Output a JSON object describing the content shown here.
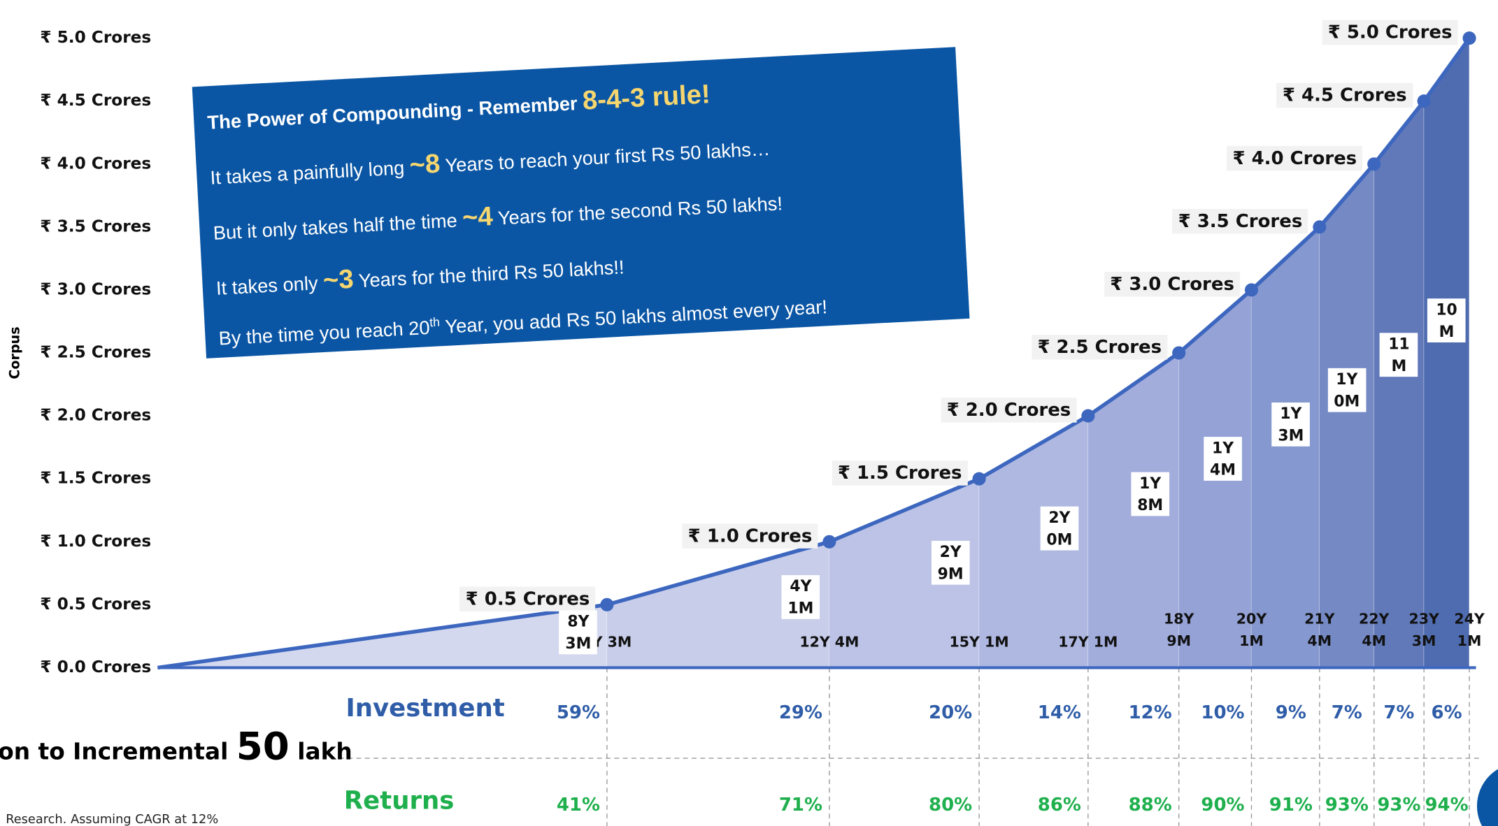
{
  "chart_data": {
    "type": "area",
    "y_label": "Corpus",
    "x": [
      0,
      8.25,
      12.333,
      15.083,
      17.083,
      18.75,
      20.083,
      21.333,
      22.333,
      23.25,
      24.083
    ],
    "values": [
      0,
      0.5,
      1.0,
      1.5,
      2.0,
      2.5,
      3.0,
      3.5,
      4.0,
      4.5,
      5.0
    ],
    "value_labels": [
      null,
      "₹ 0.5 Crores",
      "₹ 1.0 Crores",
      "₹ 1.5 Crores",
      "₹ 2.0 Crores",
      "₹ 2.5 Crores",
      "₹ 3.0 Crores",
      "₹ 3.5 Crores",
      "₹ 4.0 Crores",
      "₹ 4.5 Crores",
      "₹ 5.0 Crores"
    ],
    "xlim": [
      0,
      24.083
    ],
    "xticks": [
      {
        "value": 8.25,
        "label": "8Y 3M"
      },
      {
        "value": 12.333,
        "label": "12Y 4M"
      },
      {
        "value": 15.083,
        "label": "15Y 1M"
      },
      {
        "value": 17.083,
        "label": "17Y 1M"
      },
      {
        "value": 18.75,
        "label": "18Y 9M"
      },
      {
        "value": 20.083,
        "label": "20Y 1M"
      },
      {
        "value": 21.333,
        "label": "21Y 4M"
      },
      {
        "value": 22.333,
        "label": "22Y 4M"
      },
      {
        "value": 23.25,
        "label": "23Y 3M"
      },
      {
        "value": 24.083,
        "label": "24Y 1M"
      }
    ],
    "ylim": [
      0,
      5
    ],
    "yticks": [
      {
        "value": 0,
        "label": "₹ 0.0 Crores"
      },
      {
        "value": 0.5,
        "label": "₹ 0.5 Crores"
      },
      {
        "value": 1,
        "label": "₹ 1.0 Crores"
      },
      {
        "value": 1.5,
        "label": "₹ 1.5 Crores"
      },
      {
        "value": 2,
        "label": "₹ 2.0 Crores"
      },
      {
        "value": 2.5,
        "label": "₹ 2.5 Crores"
      },
      {
        "value": 3,
        "label": "₹ 3.0 Crores"
      },
      {
        "value": 3.5,
        "label": "₹ 3.5 Crores"
      },
      {
        "value": 4,
        "label": "₹ 4.0 Crores"
      },
      {
        "value": 4.5,
        "label": "₹ 4.5 Crores"
      },
      {
        "value": 5,
        "label": "₹ 5.0 Crores"
      }
    ],
    "durations": [
      "8Y 3M",
      "4Y 1M",
      "2Y 9M",
      "2Y 0M",
      "1Y 8M",
      "1Y 4M",
      "1Y 3M",
      "1Y 0M",
      "11 M",
      "10 M"
    ],
    "line_color": "#3d67bf",
    "band_colors": [
      "#d4d8ee",
      "#c8cdea",
      "#bcc3e6",
      "#afb8e1",
      "#a2addc",
      "#95a2d6",
      "#8598cf",
      "#7589c4",
      "#6179b9",
      "#4f6cb0"
    ],
    "investment": {
      "label": "Investment",
      "color": "#2f5da8",
      "values": [
        59,
        29,
        20,
        14,
        12,
        10,
        9,
        7,
        7,
        6
      ],
      "value_labels": [
        "59%",
        "29%",
        "20%",
        "14%",
        "12%",
        "10%",
        "9%",
        "7%",
        "7%",
        "6%"
      ]
    },
    "returns": {
      "label": "Returns",
      "color": "#1fb04d",
      "values": [
        41,
        71,
        80,
        86,
        88,
        90,
        91,
        93,
        93,
        94
      ],
      "value_labels": [
        "41%",
        "71%",
        "80%",
        "86%",
        "88%",
        "90%",
        "91%",
        "93%",
        "93%",
        "94%"
      ]
    }
  },
  "callout": {
    "title": [
      "The Power of Compounding - Remember ",
      "8-4-3 rule!"
    ],
    "lines": [
      [
        "It takes a painfully long ",
        "~8",
        " Years to reach your first Rs 50 lakhs…"
      ],
      [
        "But it only takes half the time ",
        "~4",
        " Years for the second Rs 50 lakhs!"
      ],
      [
        "It takes only ",
        "~3",
        " Years for the third Rs 50 lakhs!!"
      ],
      [
        "By the time you reach 20",
        "th",
        " Year, you add Rs 50 lakhs almost every year!"
      ]
    ]
  },
  "side_caption": [
    "on to Incremental ",
    "50",
    " lakh"
  ],
  "footnote": "Research. Assuming CAGR at 12%"
}
